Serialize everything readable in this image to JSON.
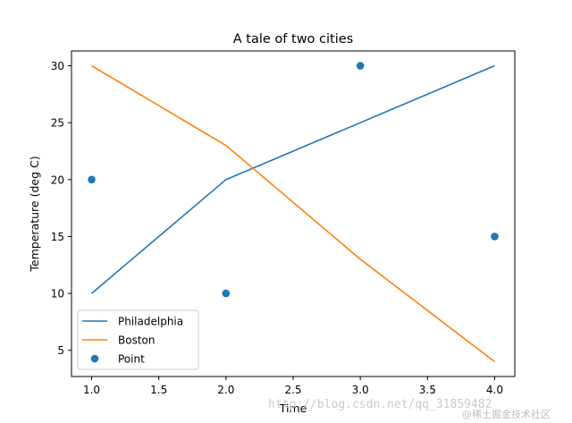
{
  "chart_data": {
    "type": "line",
    "title": "A tale of two cities",
    "xlabel": "Time",
    "ylabel": "Temperature (deg C)",
    "xlim": [
      0.85,
      4.15
    ],
    "ylim": [
      2.7,
      31.3
    ],
    "xticks": [
      1.0,
      1.5,
      2.0,
      2.5,
      3.0,
      3.5,
      4.0
    ],
    "xtick_labels": [
      "1.0",
      "1.5",
      "2.0",
      "2.5",
      "3.0",
      "3.5",
      "4.0"
    ],
    "yticks": [
      5,
      10,
      15,
      20,
      25,
      30
    ],
    "ytick_labels": [
      "5",
      "10",
      "15",
      "20",
      "25",
      "30"
    ],
    "grid": false,
    "legend_position": "lower-left",
    "series": [
      {
        "name": "Philadelphia",
        "kind": "line",
        "color": "#1f77b4",
        "x": [
          1,
          2,
          3,
          4
        ],
        "y": [
          10,
          20,
          25,
          30
        ]
      },
      {
        "name": "Boston",
        "kind": "line",
        "color": "#ff7f0e",
        "x": [
          1,
          2,
          3,
          4
        ],
        "y": [
          30,
          23,
          13,
          4
        ]
      },
      {
        "name": "Point",
        "kind": "scatter",
        "color": "#1f77b4",
        "x": [
          1,
          2,
          3,
          4
        ],
        "y": [
          20,
          10,
          30,
          15
        ]
      }
    ]
  },
  "watermark": {
    "url": "http://blog.csdn.net/qq_31859482",
    "site": "@稀土掘金技术社区"
  }
}
